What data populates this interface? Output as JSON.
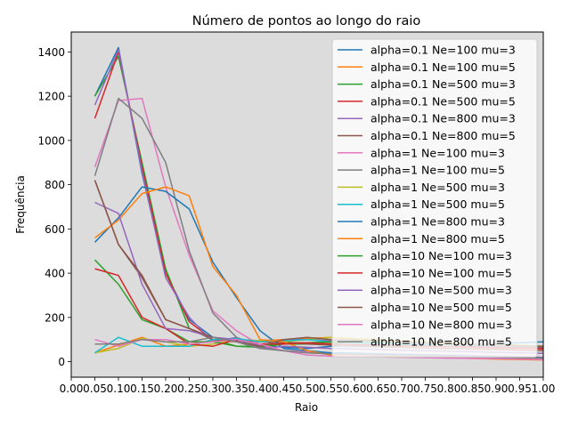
{
  "chart_data": {
    "type": "line",
    "title": "Número de pontos ao longo do raio",
    "xlabel": "Raio",
    "ylabel": "Frequência",
    "xlim": [
      0.0,
      1.0
    ],
    "ylim": [
      -70,
      1490
    ],
    "grid": false,
    "background": "#dcdcdc",
    "legend_position": "top-right",
    "x": [
      0.05,
      0.1,
      0.15,
      0.2,
      0.25,
      0.3,
      0.35,
      0.4,
      0.45,
      0.5,
      0.55,
      0.6,
      0.65,
      0.7,
      0.75,
      0.8,
      0.85,
      0.9,
      0.95,
      1.0
    ],
    "xticks": [
      "0.00",
      "0.05",
      "0.10",
      "0.15",
      "0.20",
      "0.25",
      "0.30",
      "0.35",
      "0.40",
      "0.45",
      "0.50",
      "0.55",
      "0.60",
      "0.65",
      "0.70",
      "0.75",
      "0.80",
      "0.85",
      "0.90",
      "0.95",
      "1.00"
    ],
    "yticks": [
      0,
      200,
      400,
      600,
      800,
      1000,
      1200,
      1400
    ],
    "series": [
      {
        "name": "alpha=0.1 Ne=100 mu=3",
        "color": "#1f77b4",
        "values": [
          1200,
          1420,
          850,
          400,
          190,
          110,
          100,
          75,
          65,
          60,
          70,
          72,
          70,
          72,
          75,
          78,
          80,
          82,
          85,
          90
        ]
      },
      {
        "name": "alpha=0.1 Ne=100 mu=5",
        "color": "#ff7f0e",
        "values": [
          40,
          75,
          110,
          70,
          80,
          95,
          100,
          95,
          100,
          105,
          110,
          100,
          95,
          90,
          85,
          80,
          75,
          70,
          65,
          60
        ]
      },
      {
        "name": "alpha=0.1 Ne=500 mu=3",
        "color": "#2ca02c",
        "values": [
          1200,
          1380,
          900,
          420,
          150,
          100,
          70,
          65,
          80,
          80,
          82,
          85,
          80,
          78,
          80,
          75,
          70,
          70,
          65,
          60
        ]
      },
      {
        "name": "alpha=0.1 Ne=500 mu=5",
        "color": "#d62728",
        "values": [
          1100,
          1400,
          880,
          400,
          180,
          100,
          95,
          90,
          85,
          85,
          90,
          85,
          82,
          80,
          78,
          75,
          70,
          68,
          65,
          62
        ]
      },
      {
        "name": "alpha=0.1 Ne=800 mu=3",
        "color": "#9467bd",
        "values": [
          1160,
          1410,
          860,
          380,
          200,
          90,
          110,
          70,
          100,
          100,
          95,
          90,
          88,
          85,
          80,
          78,
          75,
          72,
          70,
          68
        ]
      },
      {
        "name": "alpha=0.1 Ne=800 mu=5",
        "color": "#8c564b",
        "values": [
          820,
          530,
          380,
          190,
          150,
          100,
          90,
          60,
          90,
          80,
          75,
          70,
          68,
          65,
          62,
          60,
          58,
          55,
          52,
          50
        ]
      },
      {
        "name": "alpha=1 Ne=100 mu=3",
        "color": "#e377c2",
        "values": [
          880,
          1180,
          1190,
          790,
          480,
          230,
          140,
          75,
          50,
          45,
          40,
          38,
          35,
          34,
          32,
          30,
          28,
          26,
          24,
          20
        ]
      },
      {
        "name": "alpha=1 Ne=100 mu=5",
        "color": "#7f7f7f",
        "values": [
          840,
          1190,
          1100,
          900,
          500,
          220,
          110,
          65,
          50,
          40,
          35,
          32,
          30,
          28,
          26,
          25,
          24,
          22,
          20,
          18
        ]
      },
      {
        "name": "alpha=1 Ne=500 mu=3",
        "color": "#bcbd22",
        "values": [
          40,
          60,
          105,
          90,
          70,
          80,
          100,
          95,
          90,
          100,
          110,
          105,
          100,
          95,
          90,
          85,
          80,
          78,
          75,
          70
        ]
      },
      {
        "name": "alpha=1 Ne=500 mu=5",
        "color": "#17becf",
        "values": [
          40,
          110,
          70,
          70,
          70,
          100,
          105,
          90,
          95,
          100,
          90,
          85,
          82,
          80,
          78,
          76,
          74,
          72,
          70,
          68
        ]
      },
      {
        "name": "alpha=1 Ne=800 mu=3",
        "color": "#1f77b4",
        "values": [
          540,
          650,
          790,
          770,
          690,
          450,
          290,
          140,
          60,
          50,
          40,
          38,
          35,
          32,
          30,
          28,
          25,
          22,
          20,
          18
        ]
      },
      {
        "name": "alpha=1 Ne=800 mu=5",
        "color": "#ff7f0e",
        "values": [
          560,
          640,
          760,
          790,
          750,
          430,
          300,
          100,
          90,
          50,
          30,
          28,
          25,
          22,
          20,
          18,
          15,
          12,
          10,
          8
        ]
      },
      {
        "name": "alpha=10 Ne=100 mu=3",
        "color": "#2ca02c",
        "values": [
          460,
          350,
          190,
          150,
          90,
          90,
          70,
          70,
          80,
          85,
          90,
          92,
          90,
          88,
          85,
          80,
          78,
          75,
          72,
          70
        ]
      },
      {
        "name": "alpha=10 Ne=100 mu=5",
        "color": "#d62728",
        "values": [
          420,
          390,
          200,
          150,
          80,
          70,
          100,
          80,
          80,
          85,
          80,
          78,
          75,
          72,
          70,
          68,
          65,
          62,
          60,
          58
        ]
      },
      {
        "name": "alpha=10 Ne=500 mu=3",
        "color": "#9467bd",
        "values": [
          720,
          670,
          350,
          150,
          140,
          110,
          100,
          60,
          70,
          65,
          60,
          58,
          55,
          52,
          50,
          48,
          45,
          42,
          40,
          38
        ]
      },
      {
        "name": "alpha=10 Ne=500 mu=5",
        "color": "#8c564b",
        "values": [
          820,
          530,
          390,
          190,
          150,
          110,
          90,
          70,
          100,
          110,
          100,
          98,
          95,
          90,
          85,
          80,
          78,
          75,
          72,
          70
        ]
      },
      {
        "name": "alpha=10 Ne=800 mu=3",
        "color": "#e377c2",
        "values": [
          100,
          70,
          100,
          100,
          80,
          90,
          100,
          80,
          50,
          30,
          25,
          24,
          22,
          20,
          18,
          16,
          15,
          14,
          12,
          10
        ]
      },
      {
        "name": "alpha=10 Ne=800 mu=5",
        "color": "#7f7f7f",
        "values": [
          80,
          80,
          100,
          90,
          90,
          110,
          90,
          60,
          50,
          40,
          35,
          32,
          30,
          28,
          26,
          24,
          22,
          20,
          18,
          16
        ]
      }
    ]
  }
}
